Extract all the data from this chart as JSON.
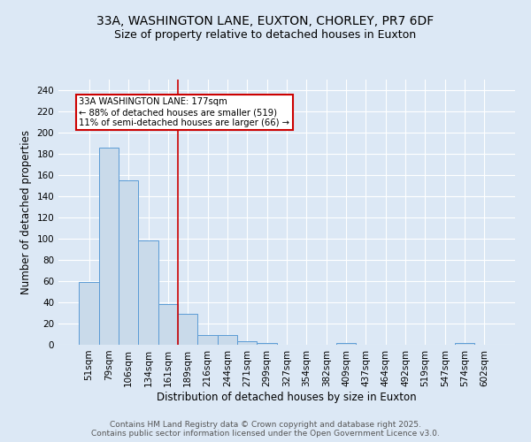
{
  "title_line1": "33A, WASHINGTON LANE, EUXTON, CHORLEY, PR7 6DF",
  "title_line2": "Size of property relative to detached houses in Euxton",
  "xlabel": "Distribution of detached houses by size in Euxton",
  "ylabel": "Number of detached properties",
  "bar_labels": [
    "51sqm",
    "79sqm",
    "106sqm",
    "134sqm",
    "161sqm",
    "189sqm",
    "216sqm",
    "244sqm",
    "271sqm",
    "299sqm",
    "327sqm",
    "354sqm",
    "382sqm",
    "409sqm",
    "437sqm",
    "464sqm",
    "492sqm",
    "519sqm",
    "547sqm",
    "574sqm",
    "602sqm"
  ],
  "bar_values": [
    59,
    186,
    155,
    98,
    38,
    29,
    9,
    9,
    3,
    2,
    0,
    0,
    0,
    2,
    0,
    0,
    0,
    0,
    0,
    2,
    0
  ],
  "bar_color": "#c9daea",
  "bar_edge_color": "#5b9bd5",
  "red_line_x": 4.5,
  "annotation_title": "33A WASHINGTON LANE: 177sqm",
  "annotation_line1": "← 88% of detached houses are smaller (519)",
  "annotation_line2": "11% of semi-detached houses are larger (66) →",
  "annotation_box_color": "#ffffff",
  "annotation_box_edge_color": "#cc0000",
  "red_line_color": "#cc0000",
  "ylim": [
    0,
    250
  ],
  "yticks": [
    0,
    20,
    40,
    60,
    80,
    100,
    120,
    140,
    160,
    180,
    200,
    220,
    240
  ],
  "footer_line1": "Contains HM Land Registry data © Crown copyright and database right 2025.",
  "footer_line2": "Contains public sector information licensed under the Open Government Licence v3.0.",
  "background_color": "#dce8f5",
  "plot_bg_color": "#dce8f5",
  "grid_color": "#ffffff",
  "title_fontsize": 10,
  "subtitle_fontsize": 9,
  "axis_label_fontsize": 8.5,
  "tick_fontsize": 7.5,
  "footer_fontsize": 6.5
}
